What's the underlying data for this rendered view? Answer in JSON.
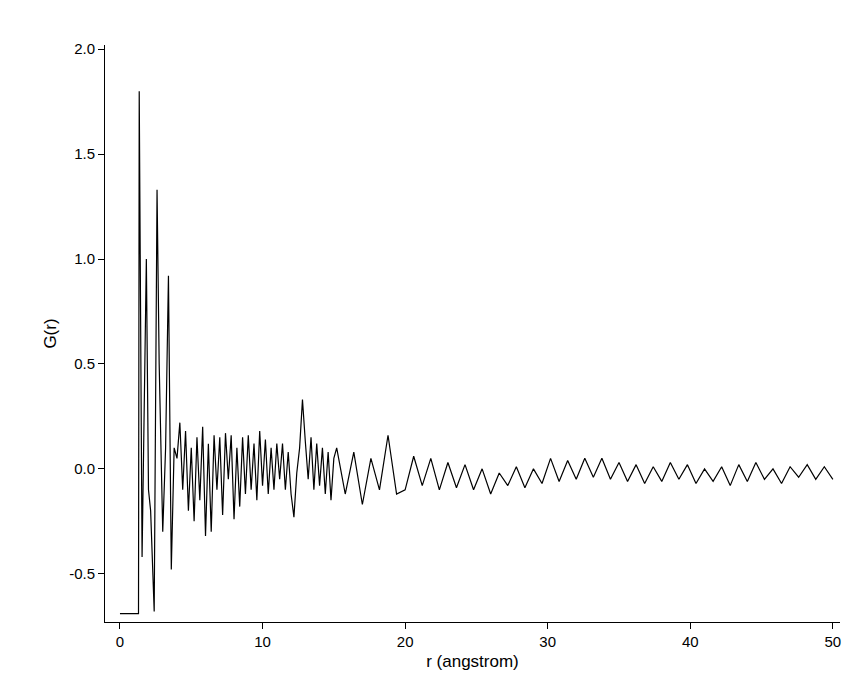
{
  "chart_data": {
    "type": "line",
    "x_label": "r (angstrom)",
    "y_label": "G(r)",
    "color": "#000000",
    "grid": false,
    "xlim": [
      -1.05,
      50.5
    ],
    "ylim": [
      -0.73,
      2.02
    ],
    "xticks": [
      0,
      10,
      20,
      30,
      40,
      50
    ],
    "yticks": [
      -0.5,
      {
        "value": 0,
        "label": "0.0"
      },
      0.5,
      {
        "value": 1,
        "label": "1.0"
      },
      1.5,
      {
        "value": 2,
        "label": "2.0"
      }
    ],
    "x": [
      0,
      1.3,
      1.35,
      1.45,
      1.55,
      1.85,
      2.0,
      2.15,
      2.4,
      2.6,
      2.75,
      3.0,
      3.2,
      3.4,
      3.6,
      3.8,
      4.0,
      4.2,
      4.4,
      4.6,
      4.8,
      5.0,
      5.2,
      5.4,
      5.6,
      5.8,
      6.0,
      6.2,
      6.4,
      6.6,
      6.8,
      7.0,
      7.2,
      7.4,
      7.6,
      7.8,
      8.0,
      8.2,
      8.4,
      8.6,
      8.8,
      9.0,
      9.2,
      9.4,
      9.6,
      9.8,
      10.0,
      10.2,
      10.4,
      10.6,
      10.8,
      11.0,
      11.2,
      11.4,
      11.6,
      11.8,
      12.0,
      12.2,
      12.4,
      12.6,
      12.8,
      13.0,
      13.2,
      13.4,
      13.6,
      13.8,
      14.0,
      14.2,
      14.4,
      14.6,
      14.8,
      15.0,
      15.2,
      15.8,
      16.4,
      17.0,
      17.6,
      18.2,
      18.8,
      19.4,
      20.0,
      20.6,
      21.2,
      21.8,
      22.4,
      23.0,
      23.6,
      24.2,
      24.8,
      25.4,
      26.0,
      26.6,
      27.2,
      27.8,
      28.4,
      29.0,
      29.6,
      30.2,
      30.8,
      31.4,
      32.0,
      32.6,
      33.2,
      33.8,
      34.4,
      35.0,
      35.6,
      36.2,
      36.8,
      37.4,
      38.0,
      38.6,
      39.2,
      39.8,
      40.4,
      41.0,
      41.6,
      42.2,
      42.8,
      43.4,
      44.0,
      44.6,
      45.2,
      45.8,
      46.4,
      47.0,
      47.6,
      48.2,
      48.8,
      49.4,
      50.0
    ],
    "values": [
      -0.69,
      -0.69,
      1.8,
      0.6,
      -0.42,
      1.0,
      -0.1,
      -0.2,
      -0.68,
      1.33,
      0.5,
      -0.3,
      0.1,
      0.92,
      -0.48,
      0.1,
      0.05,
      0.22,
      -0.1,
      0.18,
      -0.2,
      0.1,
      -0.25,
      0.15,
      -0.15,
      0.2,
      -0.32,
      0.12,
      -0.3,
      0.16,
      -0.1,
      0.15,
      -0.22,
      0.17,
      -0.05,
      0.16,
      -0.24,
      0.1,
      -0.18,
      0.15,
      -0.12,
      0.16,
      -0.1,
      0.12,
      -0.15,
      0.18,
      -0.08,
      0.14,
      -0.12,
      0.1,
      -0.1,
      0.12,
      -0.05,
      0.12,
      -0.1,
      0.08,
      -0.12,
      -0.23,
      -0.02,
      0.1,
      0.33,
      0.13,
      -0.05,
      0.15,
      -0.1,
      0.12,
      -0.08,
      0.1,
      -0.12,
      0.08,
      -0.15,
      0.05,
      0.1,
      -0.12,
      0.08,
      -0.17,
      0.05,
      -0.1,
      0.16,
      -0.12,
      -0.1,
      0.06,
      -0.08,
      0.05,
      -0.1,
      0.03,
      -0.09,
      0.02,
      -0.1,
      0.0,
      -0.12,
      -0.02,
      -0.08,
      0.01,
      -0.09,
      0.0,
      -0.07,
      0.05,
      -0.06,
      0.04,
      -0.05,
      0.05,
      -0.04,
      0.05,
      -0.05,
      0.03,
      -0.06,
      0.02,
      -0.07,
      0.01,
      -0.06,
      0.03,
      -0.05,
      0.02,
      -0.07,
      0.0,
      -0.06,
      0.01,
      -0.08,
      0.02,
      -0.06,
      0.03,
      -0.05,
      0.0,
      -0.07,
      0.01,
      -0.04,
      0.02,
      -0.05,
      0.01,
      -0.05
    ]
  }
}
